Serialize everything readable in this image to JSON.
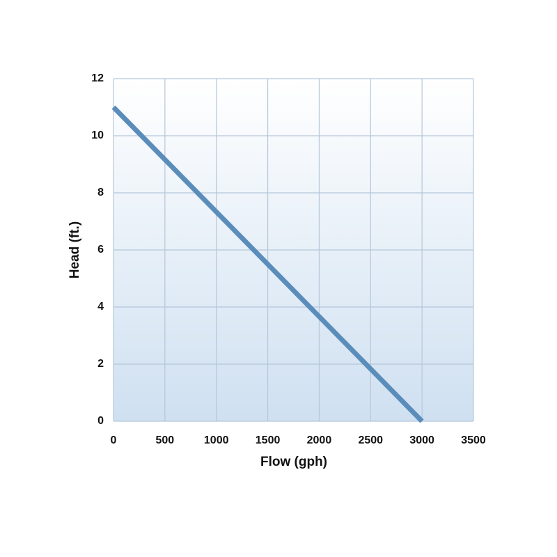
{
  "chart_data": {
    "type": "line",
    "x_label": "Flow (gph)",
    "y_label": "Head (ft.)",
    "x": [
      0,
      3000
    ],
    "values": [
      11,
      0
    ],
    "color": "#5b8dbb",
    "xlim": [
      0,
      3500
    ],
    "xticks": [
      0,
      500,
      1000,
      1500,
      2000,
      2500,
      3000,
      3500
    ],
    "ylim": [
      0,
      12
    ],
    "yticks": [
      0,
      2,
      4,
      6,
      8,
      10,
      12
    ],
    "grid": true
  }
}
